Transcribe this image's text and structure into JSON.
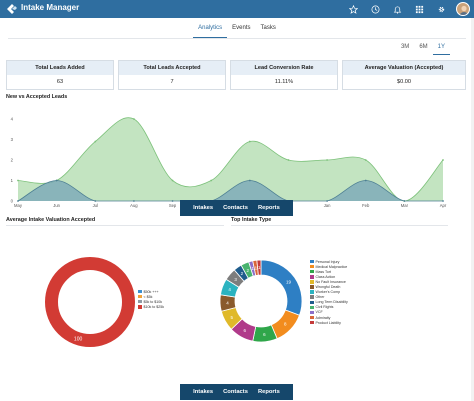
{
  "app": {
    "title": "Intake Manager"
  },
  "topbar": {
    "icons": [
      "star-icon",
      "clock-icon",
      "bell-icon",
      "grid-icon",
      "gear-icon",
      "avatar"
    ]
  },
  "tabs": [
    {
      "label": "Analytics",
      "active": true
    },
    {
      "label": "Events",
      "active": false
    },
    {
      "label": "Tasks",
      "active": false
    }
  ],
  "time_ranges": [
    {
      "label": "3M",
      "active": false
    },
    {
      "label": "6M",
      "active": false
    },
    {
      "label": "1Y",
      "active": true
    }
  ],
  "kpis": [
    {
      "title": "Total Leads Added",
      "value": "63"
    },
    {
      "title": "Total Leads Accepted",
      "value": "7"
    },
    {
      "title": "Lead Conversion Rate",
      "value": "11.11%"
    },
    {
      "title": "Average Valuation (Accepted)",
      "value": "$0.00"
    }
  ],
  "sections": {
    "new_vs_accepted": "New vs Accepted Leads",
    "avg_valuation": "Average Intake Valuation Accepted",
    "top_intake": "Top Intake Type"
  },
  "floating_nav": {
    "items": [
      "Intakes",
      "Contacts",
      "Reports"
    ]
  },
  "colors": {
    "brand": "#2f6ea0",
    "nav_dark": "#15476b",
    "new_leads": "#b9dfb6",
    "accepted": "#7aa8b8"
  },
  "chart_data": [
    {
      "type": "area",
      "title": "New vs Accepted Leads",
      "x": [
        "May",
        "Jun",
        "Jul",
        "Aug",
        "Sep",
        "Oct",
        "Nov",
        "Dec",
        "Jan",
        "Feb",
        "Mar",
        "Apr"
      ],
      "ylim": [
        0,
        4
      ],
      "yticks": [
        0,
        1,
        2,
        3,
        4
      ],
      "grid": false,
      "series": [
        {
          "values": [
            1,
            1,
            2.9,
            4,
            1,
            1,
            2.9,
            2,
            2,
            2,
            0,
            2
          ]
        },
        {
          "values": [
            0,
            1,
            0,
            0,
            0,
            0,
            1,
            0,
            0,
            1,
            0,
            0
          ]
        }
      ]
    },
    {
      "type": "pie",
      "title": "Average Intake Valuation Accepted",
      "legend": [
        "$50k +++",
        "< $5k",
        "$5k to $10k",
        "$10k to $25k"
      ],
      "legend_colors": [
        "#3b8fd0",
        "#f0a23a",
        "#8e9aa3",
        "#d23b34"
      ],
      "values": [
        0,
        0,
        0,
        100
      ],
      "slice_labels": [
        "100"
      ]
    },
    {
      "type": "pie",
      "title": "Top Intake Type",
      "legend": [
        "Personal Injury",
        "Medical Malpractice",
        "Mass Tort",
        "Class Action",
        "No Fault Insurance",
        "Wrongful Death",
        "Worker's Comp",
        "Other",
        "Long Term Disability",
        "Civil Rights",
        "VCF",
        "Admiralty",
        "Product Liability"
      ],
      "legend_colors": [
        "#2e7fc4",
        "#f28c1e",
        "#2fa64a",
        "#b03a8a",
        "#e0b92a",
        "#8a5a2c",
        "#2bb3c0",
        "#7d7d7d",
        "#1f5c8c",
        "#48b36e",
        "#8c6fc9",
        "#d8663a",
        "#c43a3a"
      ],
      "values": [
        19,
        8,
        6,
        6,
        5,
        4,
        4,
        3,
        2,
        2,
        1,
        1,
        1
      ],
      "slice_labels": [
        "19",
        "8",
        "6",
        "6",
        "5",
        "4",
        "4",
        "3",
        "2",
        "2",
        "1",
        "1",
        "1"
      ]
    }
  ]
}
